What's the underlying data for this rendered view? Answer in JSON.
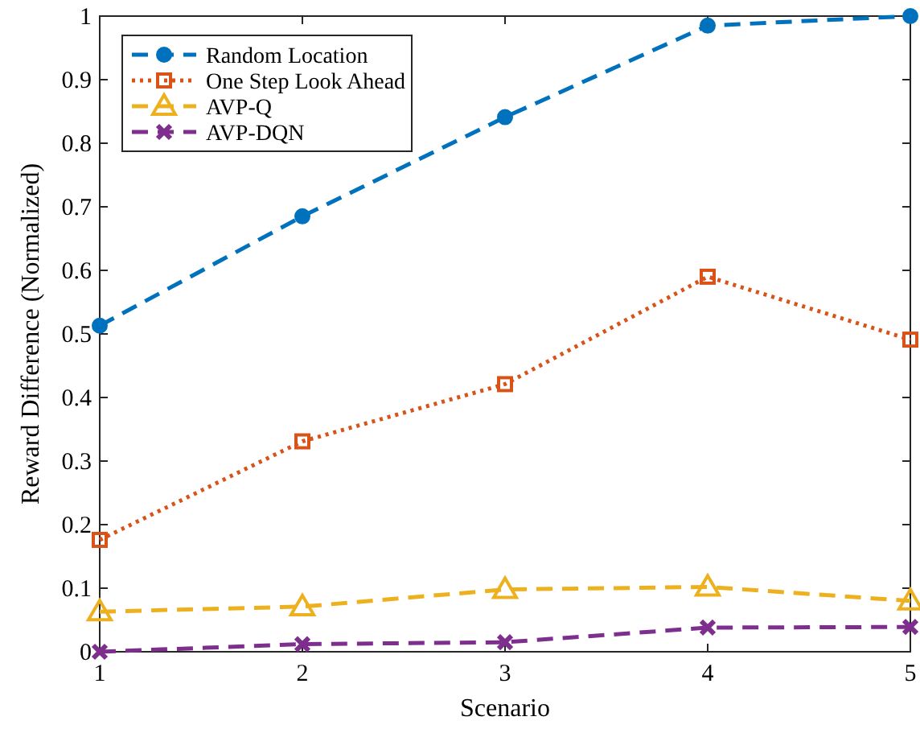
{
  "chart_data": {
    "type": "line",
    "xlabel": "Scenario",
    "ylabel": "Reward Difference (Normalized)",
    "x": [
      1,
      2,
      3,
      4,
      5
    ],
    "xlim": [
      1,
      5
    ],
    "xticks": [
      1,
      2,
      3,
      4,
      5
    ],
    "ylim": [
      0,
      1
    ],
    "yticks": [
      0,
      0.1,
      0.2,
      0.3,
      0.4,
      0.5,
      0.6,
      0.7,
      0.8,
      0.9,
      1
    ],
    "grid": false,
    "legend": "top left",
    "series": [
      {
        "name": "Random Location",
        "color": "#0072bd",
        "marker": "circle",
        "line_style": "dashed",
        "values": [
          0.513,
          0.685,
          0.841,
          0.985,
          1.0
        ]
      },
      {
        "name": "One Step Look Ahead",
        "color": "#d95319",
        "marker": "square",
        "line_style": "dotted",
        "values": [
          0.176,
          0.331,
          0.421,
          0.59,
          0.491
        ]
      },
      {
        "name": "AVP-Q",
        "color": "#edb120",
        "marker": "triangle",
        "line_style": "dashed",
        "values": [
          0.063,
          0.071,
          0.098,
          0.102,
          0.08
        ]
      },
      {
        "name": "AVP-DQN",
        "color": "#7e2f8e",
        "marker": "cross",
        "line_style": "dashed",
        "values": [
          0,
          0.012,
          0.015,
          0.038,
          0.039
        ]
      }
    ]
  }
}
